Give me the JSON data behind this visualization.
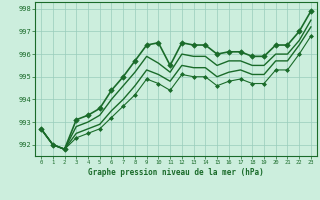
{
  "background_color": "#cceedd",
  "grid_color": "#99ccbb",
  "line_color": "#1a6b2a",
  "xlabel": "Graphe pression niveau de la mer (hPa)",
  "xlim": [
    -0.5,
    23.5
  ],
  "ylim": [
    991.5,
    998.3
  ],
  "yticks": [
    992,
    993,
    994,
    995,
    996,
    997,
    998
  ],
  "xticks": [
    0,
    1,
    2,
    3,
    4,
    5,
    6,
    7,
    8,
    9,
    10,
    11,
    12,
    13,
    14,
    15,
    16,
    17,
    18,
    19,
    20,
    21,
    22,
    23
  ],
  "series": [
    {
      "x": [
        0,
        1,
        2,
        3,
        4,
        5,
        6,
        7,
        8,
        9,
        10,
        11,
        12,
        13,
        14,
        15,
        16,
        17,
        18,
        19,
        20,
        21,
        22,
        23
      ],
      "y": [
        992.7,
        992.0,
        991.8,
        993.1,
        993.3,
        993.6,
        994.4,
        995.0,
        995.7,
        996.4,
        996.5,
        995.5,
        996.5,
        996.4,
        996.4,
        996.0,
        996.1,
        996.1,
        995.9,
        995.9,
        996.4,
        996.4,
        997.0,
        997.9
      ],
      "marker": "D",
      "markersize": 2.8,
      "linewidth": 1.2,
      "linestyle": "-",
      "zorder": 5
    },
    {
      "x": [
        0,
        1,
        2,
        3,
        4,
        5,
        6,
        7,
        8,
        9,
        10,
        11,
        12,
        13,
        14,
        15,
        16,
        17,
        18,
        19,
        20,
        21,
        22,
        23
      ],
      "y": [
        992.7,
        992.0,
        991.8,
        992.8,
        993.0,
        993.3,
        994.0,
        994.6,
        995.2,
        995.9,
        995.6,
        995.2,
        996.0,
        995.9,
        995.9,
        995.5,
        995.7,
        995.7,
        995.5,
        995.5,
        996.0,
        996.0,
        996.6,
        997.5
      ],
      "marker": null,
      "markersize": 0,
      "linewidth": 1.0,
      "linestyle": "-",
      "zorder": 4
    },
    {
      "x": [
        0,
        1,
        2,
        3,
        4,
        5,
        6,
        7,
        8,
        9,
        10,
        11,
        12,
        13,
        14,
        15,
        16,
        17,
        18,
        19,
        20,
        21,
        22,
        23
      ],
      "y": [
        992.7,
        992.0,
        991.8,
        992.5,
        992.7,
        992.9,
        993.5,
        994.0,
        994.6,
        995.3,
        995.1,
        994.8,
        995.5,
        995.4,
        995.4,
        995.0,
        995.2,
        995.3,
        995.1,
        995.1,
        995.7,
        995.7,
        996.4,
        997.2
      ],
      "marker": null,
      "markersize": 0,
      "linewidth": 1.0,
      "linestyle": "-",
      "zorder": 3
    },
    {
      "x": [
        0,
        1,
        2,
        3,
        4,
        5,
        6,
        7,
        8,
        9,
        10,
        11,
        12,
        13,
        14,
        15,
        16,
        17,
        18,
        19,
        20,
        21,
        22,
        23
      ],
      "y": [
        992.7,
        992.0,
        991.8,
        992.3,
        992.5,
        992.7,
        993.2,
        993.7,
        994.2,
        994.9,
        994.7,
        994.4,
        995.1,
        995.0,
        995.0,
        994.6,
        994.8,
        994.9,
        994.7,
        994.7,
        995.3,
        995.3,
        996.0,
        996.8
      ],
      "marker": "D",
      "markersize": 2.0,
      "linewidth": 0.8,
      "linestyle": "-",
      "zorder": 2
    }
  ]
}
